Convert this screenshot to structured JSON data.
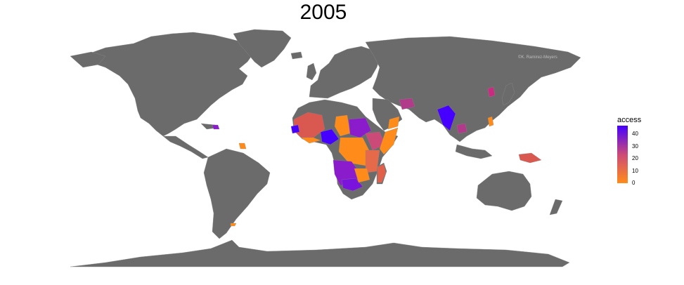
{
  "title": "2005",
  "credit": "©K. Ramirez-Meyers",
  "legend": {
    "title": "access",
    "ticks": [
      {
        "value": 40,
        "label": "40"
      },
      {
        "value": 30,
        "label": "30"
      },
      {
        "value": 20,
        "label": "20"
      },
      {
        "value": 10,
        "label": "10"
      },
      {
        "value": 0,
        "label": "0"
      }
    ],
    "range": [
      0,
      47
    ],
    "colors": {
      "low": "#ff8c1a",
      "mid": "#cc4a78",
      "high": "#4500ff"
    }
  },
  "colors": {
    "land": "#6b6b6b",
    "background": "#ffffff",
    "borders": "#8a8a8a"
  }
}
